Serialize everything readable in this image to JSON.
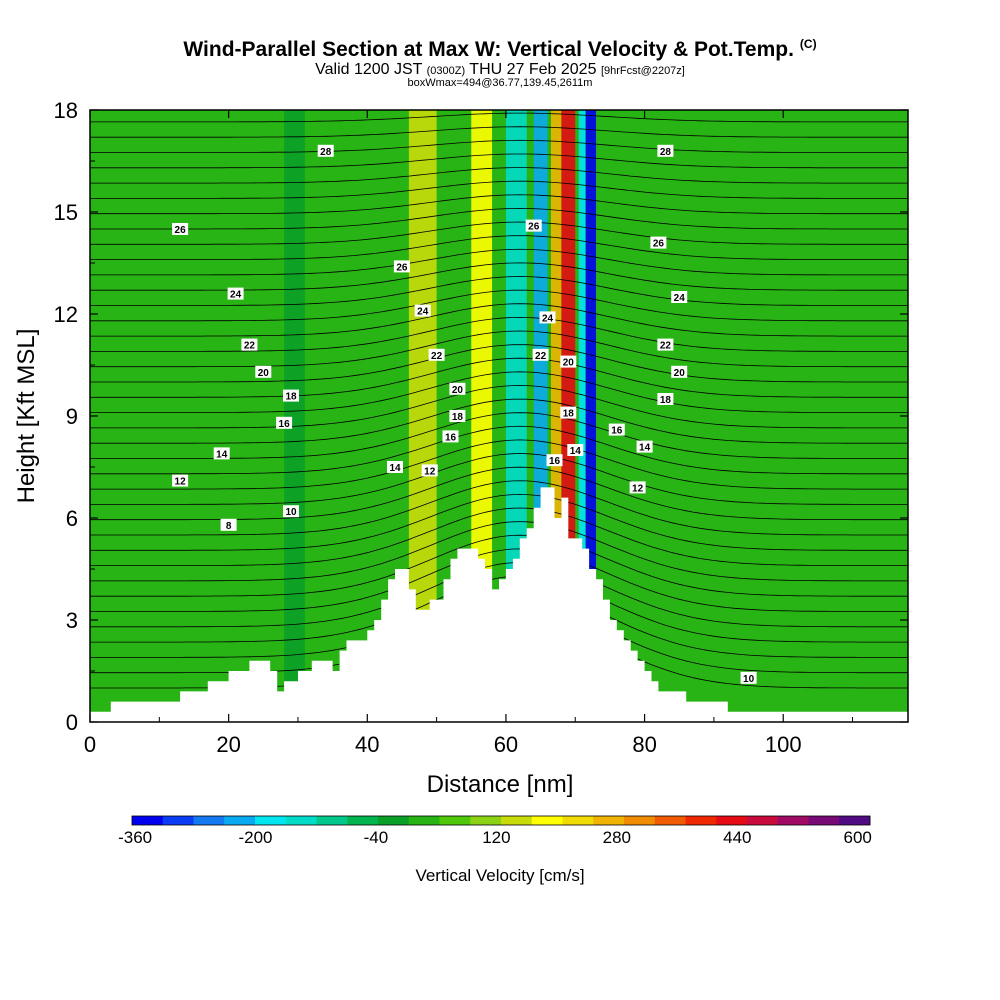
{
  "header": {
    "title": "Wind-Parallel Section at Max W: Vertical Velocity & Pot.Temp.",
    "title_mark": "(C)",
    "valid_a": "Valid 1200 JST",
    "valid_b": "(0300Z)",
    "valid_c": "THU 27 Feb 2025",
    "valid_d": "[9hrFcst@2207z]",
    "box_info": "boxWmax=494@36.77,139.45,2611m"
  },
  "chart_data": {
    "type": "heatmap",
    "xlabel": "Distance [nm]",
    "ylabel": "Height [Kft MSL]",
    "xlim": [
      0,
      118
    ],
    "ylim": [
      0,
      18
    ],
    "x_ticks": [
      "0",
      "20",
      "40",
      "60",
      "80",
      "100"
    ],
    "y_ticks": [
      "0",
      "3",
      "6",
      "9",
      "12",
      "15",
      "18"
    ],
    "colorbar": {
      "label": "Vertical Velocity [cm/s]",
      "tick_labels": [
        "-360",
        "-200",
        "-40",
        "120",
        "280",
        "440",
        "600"
      ],
      "colors": [
        "#0000f0",
        "#0a3cf5",
        "#1478f0",
        "#0aaaf0",
        "#00e6f0",
        "#00dcc8",
        "#00c88c",
        "#00b450",
        "#0aa028",
        "#28b414",
        "#50c80a",
        "#8cd214",
        "#c8dc0a",
        "#ffff00",
        "#f0dc00",
        "#f0b400",
        "#f08c00",
        "#f05a00",
        "#f02800",
        "#e60a14",
        "#c80a3c",
        "#a00a64",
        "#780a78",
        "#500a82"
      ]
    },
    "terrain": [
      [
        0,
        0.3
      ],
      [
        3,
        0.3
      ],
      [
        3,
        0.6
      ],
      [
        13,
        0.6
      ],
      [
        13,
        0.9
      ],
      [
        17,
        0.9
      ],
      [
        17,
        1.2
      ],
      [
        20,
        1.2
      ],
      [
        20,
        1.5
      ],
      [
        23,
        1.5
      ],
      [
        23,
        1.8
      ],
      [
        26,
        1.8
      ],
      [
        26,
        1.5
      ],
      [
        27,
        1.5
      ],
      [
        27,
        0.9
      ],
      [
        28,
        0.9
      ],
      [
        28,
        1.2
      ],
      [
        30,
        1.2
      ],
      [
        30,
        1.5
      ],
      [
        32,
        1.5
      ],
      [
        32,
        1.8
      ],
      [
        35,
        1.8
      ],
      [
        35,
        1.5
      ],
      [
        36,
        1.5
      ],
      [
        36,
        2.1
      ],
      [
        37,
        2.1
      ],
      [
        37,
        2.4
      ],
      [
        40,
        2.4
      ],
      [
        40,
        2.7
      ],
      [
        41,
        2.7
      ],
      [
        41,
        3.0
      ],
      [
        42,
        3.0
      ],
      [
        42,
        3.6
      ],
      [
        43,
        3.6
      ],
      [
        43,
        4.2
      ],
      [
        44,
        4.2
      ],
      [
        44,
        4.5
      ],
      [
        46,
        4.5
      ],
      [
        46,
        3.9
      ],
      [
        47,
        3.9
      ],
      [
        47,
        3.3
      ],
      [
        49,
        3.3
      ],
      [
        49,
        3.6
      ],
      [
        51,
        3.6
      ],
      [
        51,
        4.2
      ],
      [
        52,
        4.2
      ],
      [
        52,
        4.8
      ],
      [
        53,
        4.8
      ],
      [
        53,
        5.1
      ],
      [
        56,
        5.1
      ],
      [
        56,
        4.8
      ],
      [
        57,
        4.8
      ],
      [
        57,
        4.5
      ],
      [
        58,
        4.5
      ],
      [
        58,
        3.9
      ],
      [
        59,
        3.9
      ],
      [
        59,
        4.2
      ],
      [
        60,
        4.2
      ],
      [
        60,
        4.5
      ],
      [
        61,
        4.5
      ],
      [
        61,
        4.8
      ],
      [
        62,
        4.8
      ],
      [
        62,
        5.4
      ],
      [
        63,
        5.4
      ],
      [
        63,
        5.7
      ],
      [
        64,
        5.7
      ],
      [
        64,
        6.3
      ],
      [
        65,
        6.3
      ],
      [
        65,
        6.9
      ],
      [
        67,
        6.9
      ],
      [
        67,
        6.0
      ],
      [
        68,
        6.0
      ],
      [
        68,
        6.6
      ],
      [
        69,
        6.6
      ],
      [
        69,
        5.4
      ],
      [
        71,
        5.4
      ],
      [
        71,
        5.1
      ],
      [
        72,
        5.1
      ],
      [
        72,
        4.5
      ],
      [
        73,
        4.5
      ],
      [
        73,
        4.2
      ],
      [
        74,
        4.2
      ],
      [
        74,
        3.6
      ],
      [
        75,
        3.6
      ],
      [
        75,
        3.0
      ],
      [
        76,
        3.0
      ],
      [
        76,
        2.7
      ],
      [
        77,
        2.7
      ],
      [
        77,
        2.4
      ],
      [
        78,
        2.4
      ],
      [
        78,
        2.1
      ],
      [
        79,
        2.1
      ],
      [
        79,
        1.8
      ],
      [
        80,
        1.8
      ],
      [
        80,
        1.5
      ],
      [
        81,
        1.5
      ],
      [
        81,
        1.2
      ],
      [
        82,
        1.2
      ],
      [
        82,
        0.9
      ],
      [
        86,
        0.9
      ],
      [
        86,
        0.6
      ],
      [
        89,
        0.6
      ],
      [
        89,
        0.6
      ],
      [
        92,
        0.6
      ],
      [
        92,
        0.3
      ],
      [
        118,
        0.3
      ]
    ],
    "bands": [
      {
        "x": [
          28,
          31
        ],
        "color": "#0aa028",
        "note": "downdraft band"
      },
      {
        "x": [
          46,
          50
        ],
        "color": "#c8dc0a"
      },
      {
        "x": [
          55,
          58
        ],
        "color": "#ffff00"
      },
      {
        "x": [
          60,
          63
        ],
        "color": "#00dcc8"
      },
      {
        "x": [
          64,
          66
        ],
        "color": "#0aaaf0"
      },
      {
        "x": [
          66.5,
          68
        ],
        "color": "#f0b400"
      },
      {
        "x": [
          68,
          70
        ],
        "color": "#e60a14"
      },
      {
        "x": [
          70.5,
          71.5
        ],
        "color": "#00e6f0"
      },
      {
        "x": [
          71.5,
          73
        ],
        "color": "#0000f0"
      }
    ],
    "theta_contour_labels": [
      {
        "x": 34,
        "y": 16.8,
        "label": "28"
      },
      {
        "x": 83,
        "y": 16.8,
        "label": "28"
      },
      {
        "x": 13,
        "y": 14.5,
        "label": "26"
      },
      {
        "x": 45,
        "y": 13.4,
        "label": "26"
      },
      {
        "x": 64,
        "y": 14.6,
        "label": "26"
      },
      {
        "x": 82,
        "y": 14.1,
        "label": "26"
      },
      {
        "x": 21,
        "y": 12.6,
        "label": "24"
      },
      {
        "x": 48,
        "y": 12.1,
        "label": "24"
      },
      {
        "x": 66,
        "y": 11.9,
        "label": "24"
      },
      {
        "x": 85,
        "y": 12.5,
        "label": "24"
      },
      {
        "x": 23,
        "y": 11.1,
        "label": "22"
      },
      {
        "x": 50,
        "y": 10.8,
        "label": "22"
      },
      {
        "x": 65,
        "y": 10.8,
        "label": "22"
      },
      {
        "x": 83,
        "y": 11.1,
        "label": "22"
      },
      {
        "x": 25,
        "y": 10.3,
        "label": "20"
      },
      {
        "x": 53,
        "y": 9.8,
        "label": "20"
      },
      {
        "x": 69,
        "y": 10.6,
        "label": "20"
      },
      {
        "x": 85,
        "y": 10.3,
        "label": "20"
      },
      {
        "x": 29,
        "y": 9.6,
        "label": "18"
      },
      {
        "x": 53,
        "y": 9.0,
        "label": "18"
      },
      {
        "x": 69,
        "y": 9.1,
        "label": "18"
      },
      {
        "x": 83,
        "y": 9.5,
        "label": "18"
      },
      {
        "x": 28,
        "y": 8.8,
        "label": "16"
      },
      {
        "x": 52,
        "y": 8.4,
        "label": "16"
      },
      {
        "x": 67,
        "y": 7.7,
        "label": "16"
      },
      {
        "x": 76,
        "y": 8.6,
        "label": "16"
      },
      {
        "x": 19,
        "y": 7.9,
        "label": "14"
      },
      {
        "x": 44,
        "y": 7.5,
        "label": "14"
      },
      {
        "x": 70,
        "y": 8.0,
        "label": "14"
      },
      {
        "x": 80,
        "y": 8.1,
        "label": "14"
      },
      {
        "x": 13,
        "y": 7.1,
        "label": "12"
      },
      {
        "x": 49,
        "y": 7.4,
        "label": "12"
      },
      {
        "x": 79,
        "y": 6.9,
        "label": "12"
      },
      {
        "x": 29,
        "y": 6.2,
        "label": "10"
      },
      {
        "x": 95,
        "y": 1.3,
        "label": "10"
      },
      {
        "x": 20,
        "y": 5.8,
        "label": "8"
      }
    ]
  }
}
